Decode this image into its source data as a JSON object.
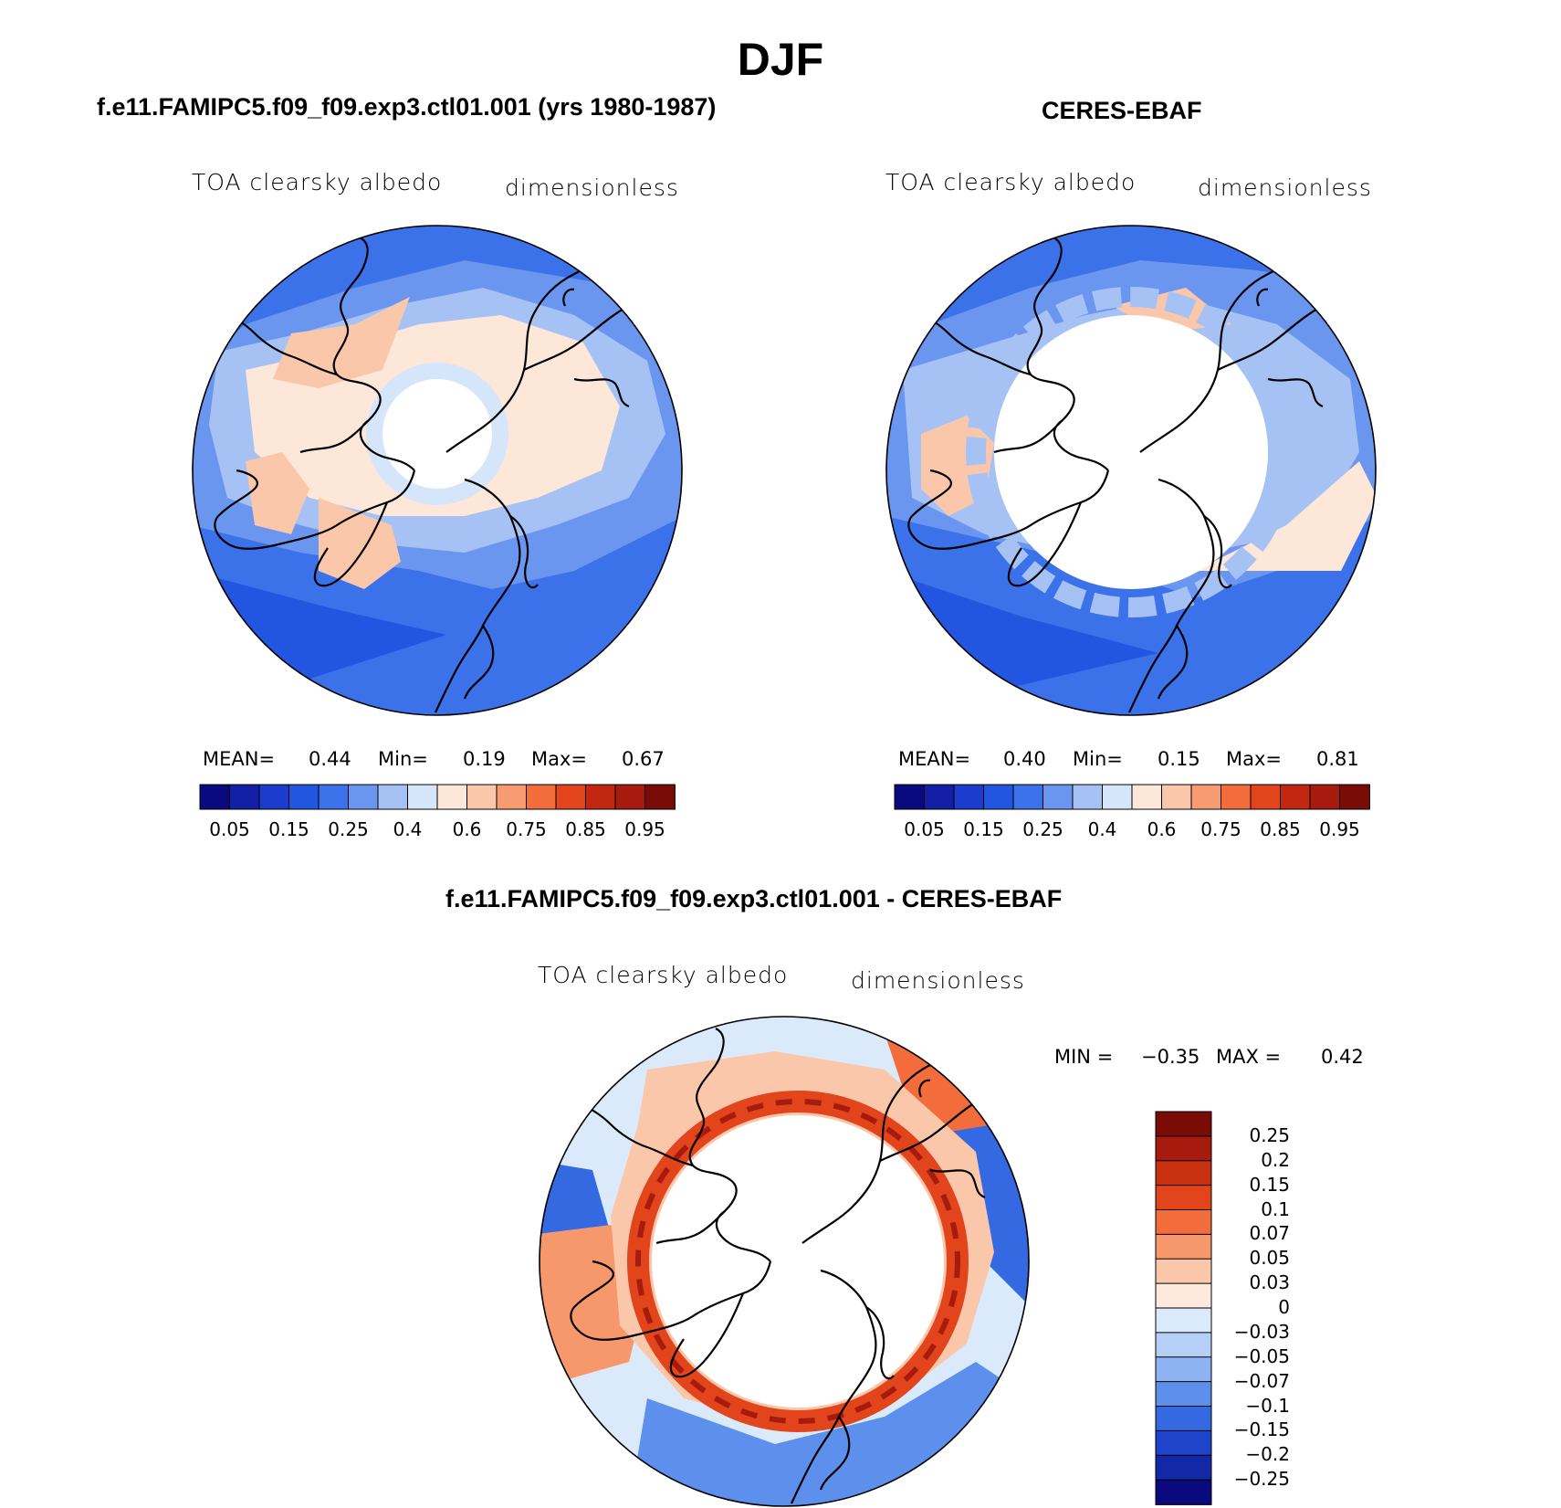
{
  "figure": {
    "season": "DJF"
  },
  "chart_data": [
    {
      "type": "heatmap",
      "panel": "model",
      "title": "f.e11.FAMIPC5.f09_f09.exp3.ctl01.001 (yrs 1980-1987)",
      "variable": "TOA clearsky albedo",
      "units": "dimensionless",
      "projection": "north polar stereographic",
      "stats": {
        "mean_label": "MEAN=",
        "mean": "0.44",
        "min_label": "Min=",
        "min": "0.19",
        "max_label": "Max=",
        "max": "0.67"
      },
      "colorbar": {
        "levels": [
          0.05,
          0.1,
          0.15,
          0.2,
          0.25,
          0.3,
          0.4,
          0.5,
          0.6,
          0.7,
          0.75,
          0.8,
          0.85,
          0.9,
          0.95
        ],
        "tick_labels": [
          "0.05",
          "0.15",
          "0.25",
          "0.4",
          "0.6",
          "0.75",
          "0.85",
          "0.95"
        ],
        "colors": [
          "#0a0a7e",
          "#1320a6",
          "#1b3ccc",
          "#2356e0",
          "#3b72ea",
          "#6b96f0",
          "#a6c2f5",
          "#d6e6fa",
          "#fde7d8",
          "#fbc7aa",
          "#f89a72",
          "#f26c3c",
          "#e2441c",
          "#c22712",
          "#a61b0e",
          "#7a0c08"
        ]
      }
    },
    {
      "type": "heatmap",
      "panel": "observations",
      "title": "CERES-EBAF",
      "variable": "TOA clearsky albedo",
      "units": "dimensionless",
      "projection": "north polar stereographic",
      "stats": {
        "mean_label": "MEAN=",
        "mean": "0.40",
        "min_label": "Min=",
        "min": "0.15",
        "max_label": "Max=",
        "max": "0.81"
      },
      "colorbar": {
        "levels": [
          0.05,
          0.1,
          0.15,
          0.2,
          0.25,
          0.3,
          0.4,
          0.5,
          0.6,
          0.7,
          0.75,
          0.8,
          0.85,
          0.9,
          0.95
        ],
        "tick_labels": [
          "0.05",
          "0.15",
          "0.25",
          "0.4",
          "0.6",
          "0.75",
          "0.85",
          "0.95"
        ],
        "colors": [
          "#0a0a7e",
          "#1320a6",
          "#1b3ccc",
          "#2356e0",
          "#3b72ea",
          "#6b96f0",
          "#a6c2f5",
          "#d6e6fa",
          "#fde7d8",
          "#fbc7aa",
          "#f89a72",
          "#f26c3c",
          "#e2441c",
          "#c22712",
          "#a61b0e",
          "#7a0c08"
        ]
      }
    },
    {
      "type": "heatmap",
      "panel": "difference",
      "title": "f.e11.FAMIPC5.f09_f09.exp3.ctl01.001 - CERES-EBAF",
      "variable": "TOA clearsky albedo",
      "units": "dimensionless",
      "projection": "north polar stereographic",
      "stats": {
        "min_label": "MIN =",
        "min": "−0.35",
        "max_label": "MAX =",
        "max": "0.42"
      },
      "colorbar": {
        "levels": [
          0.25,
          0.2,
          0.15,
          0.1,
          0.07,
          0.05,
          0.03,
          0,
          -0.03,
          -0.05,
          -0.07,
          -0.1,
          -0.15,
          -0.2,
          -0.25
        ],
        "tick_labels": [
          "0.25",
          "0.2",
          "0.15",
          "0.1",
          "0.07",
          "0.05",
          "0.03",
          "0",
          "−0.03",
          "−0.05",
          "−0.07",
          "−0.1",
          "−0.15",
          "−0.2",
          "−0.25"
        ],
        "colors": [
          "#7a0c08",
          "#a61b0e",
          "#c8300f",
          "#e2441c",
          "#f26c3c",
          "#f7986c",
          "#fbc7aa",
          "#fde9dd",
          "#dbeafb",
          "#b5cff7",
          "#8db3f2",
          "#5d90ec",
          "#3569e2",
          "#1e44cc",
          "#1228a6",
          "#0a0a7e"
        ]
      }
    }
  ]
}
